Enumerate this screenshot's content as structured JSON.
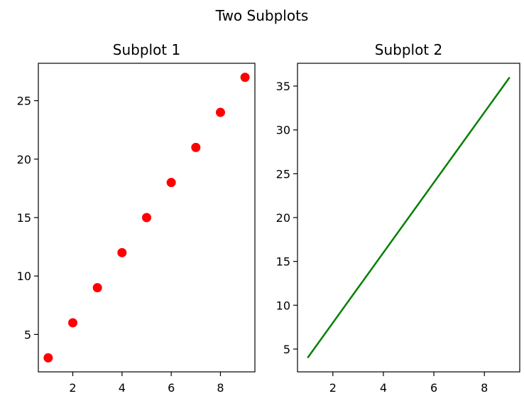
{
  "figure": {
    "suptitle": "Two Subplots"
  },
  "chart_data": [
    {
      "type": "scatter",
      "title": "Subplot 1",
      "xlabel": "",
      "ylabel": "",
      "x": [
        1,
        2,
        3,
        4,
        5,
        6,
        7,
        8,
        9
      ],
      "y": [
        3,
        6,
        9,
        12,
        15,
        18,
        21,
        24,
        27
      ],
      "xlim": [
        0.6,
        9.4
      ],
      "ylim": [
        1.8,
        28.2
      ],
      "xticks": [
        2,
        4,
        6,
        8
      ],
      "yticks": [
        5,
        10,
        15,
        20,
        25
      ],
      "color": "#ff0000",
      "grid": false
    },
    {
      "type": "line",
      "title": "Subplot 2",
      "xlabel": "",
      "ylabel": "",
      "x": [
        1,
        2,
        3,
        4,
        5,
        6,
        7,
        8,
        9
      ],
      "y": [
        4,
        8,
        12,
        16,
        20,
        24,
        28,
        32,
        36
      ],
      "xlim": [
        0.6,
        9.4
      ],
      "ylim": [
        2.4,
        37.6
      ],
      "xticks": [
        2,
        4,
        6,
        8
      ],
      "yticks": [
        5,
        10,
        15,
        20,
        25,
        30,
        35
      ],
      "color": "#008000",
      "grid": false
    }
  ]
}
